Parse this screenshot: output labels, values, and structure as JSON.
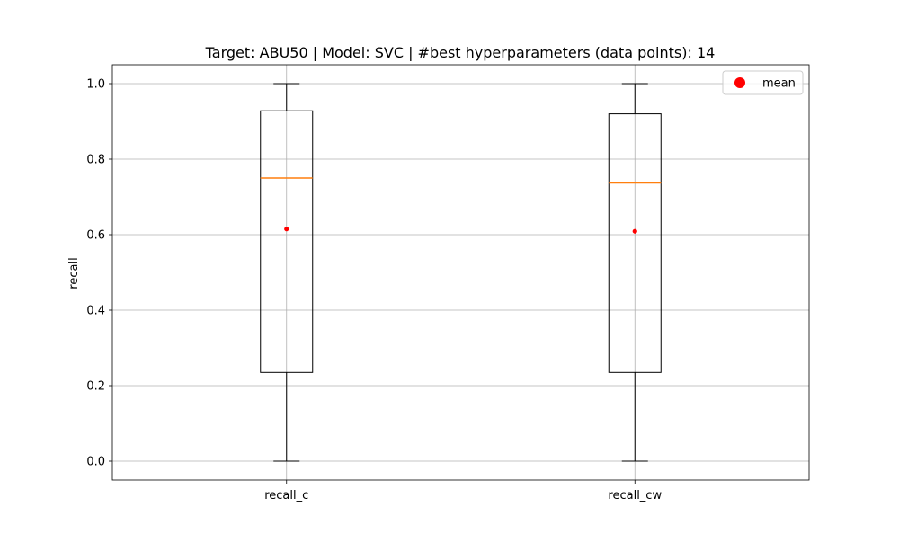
{
  "chart_data": {
    "type": "box",
    "title": "Target: ABU50 | Model: SVC | #best hyperparameters (data points): 14",
    "xlabel": "",
    "ylabel": "recall",
    "ylim": [
      -0.05,
      1.05
    ],
    "yticks": [
      0.0,
      0.2,
      0.4,
      0.6,
      0.8,
      1.0
    ],
    "ytick_labels": [
      "0.0",
      "0.2",
      "0.4",
      "0.6",
      "0.8",
      "1.0"
    ],
    "grid": true,
    "legend": {
      "placement": "top-right",
      "entries": [
        {
          "label": "mean",
          "color": "#ff0000",
          "marker": "circle"
        }
      ]
    },
    "categories": [
      "recall_c",
      "recall_cw"
    ],
    "boxes": [
      {
        "label": "recall_c",
        "whisker_low": 0.0,
        "q1": 0.235,
        "median": 0.75,
        "q3": 0.928,
        "whisker_high": 1.0,
        "mean": 0.615
      },
      {
        "label": "recall_cw",
        "whisker_low": 0.0,
        "q1": 0.235,
        "median": 0.737,
        "q3": 0.92,
        "whisker_high": 1.0,
        "mean": 0.609
      }
    ],
    "colors": {
      "box": "#000000",
      "median": "#ff7f0e",
      "mean": "#ff0000",
      "grid": "#b0b0b0"
    }
  }
}
